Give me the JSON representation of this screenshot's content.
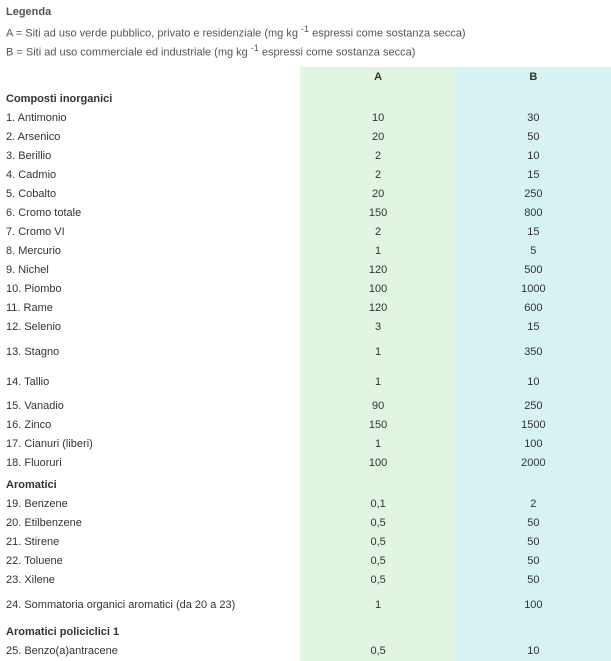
{
  "legend": {
    "title": "Legenda",
    "lineA_pre": "A = Siti ad uso verde pubblico, privato e residenziale (mg kg ",
    "lineA_sup": "-1",
    "lineA_post": " espressi come sostanza secca)",
    "lineB_pre": "B = Siti ad uso commerciale ed industriale (mg kg ",
    "lineB_sup": "-1",
    "lineB_post": " espressi come sostanza secca)"
  },
  "headers": {
    "colA": "A",
    "colB": "B"
  },
  "colors": {
    "colA_bg": "#e2f4e2",
    "colB_bg": "#d6f2f2",
    "text": "#333333"
  },
  "sections": [
    {
      "title": "Composti inorganici",
      "rows": [
        {
          "label": "1. Antimonio",
          "a": "10",
          "b": "30"
        },
        {
          "label": "2. Arsenico",
          "a": "20",
          "b": "50"
        },
        {
          "label": "3. Berillio",
          "a": "2",
          "b": "10"
        },
        {
          "label": "4. Cadmio",
          "a": "2",
          "b": "15"
        },
        {
          "label": "5. Cobalto",
          "a": "20",
          "b": "250"
        },
        {
          "label": "6. Cromo totale",
          "a": "150",
          "b": "800"
        },
        {
          "label": "7. Cromo VI",
          "a": "2",
          "b": "15"
        },
        {
          "label": "8. Mercurio",
          "a": "1",
          "b": "5"
        },
        {
          "label": "9. Nichel",
          "a": "120",
          "b": "500"
        },
        {
          "label": "10. Piombo",
          "a": "100",
          "b": "1000"
        },
        {
          "label": "11. Rame",
          "a": "120",
          "b": "600"
        },
        {
          "label": "12. Selenio",
          "a": "3",
          "b": "15"
        },
        {
          "label": "13. Stagno",
          "a": "1",
          "b": "350",
          "tall": true
        },
        {
          "label": "14. Tallio",
          "a": "1",
          "b": "10",
          "tall": true
        },
        {
          "label": "15. Vanadio",
          "a": "90",
          "b": "250"
        },
        {
          "label": "16. Zinco",
          "a": "150",
          "b": "1500"
        },
        {
          "label": "17. Cianuri (liberi)",
          "a": "1",
          "b": "100"
        },
        {
          "label": "18. Fluoruri",
          "a": "100",
          "b": "2000"
        }
      ]
    },
    {
      "title": "Aromatici",
      "rows": [
        {
          "label": "19. Benzene",
          "a": "0,1",
          "b": "2"
        },
        {
          "label": "20. Etilbenzene",
          "a": "0,5",
          "b": "50"
        },
        {
          "label": "21. Stirene",
          "a": "0,5",
          "b": "50"
        },
        {
          "label": "22. Toluene",
          "a": "0,5",
          "b": "50"
        },
        {
          "label": "23. Xilene",
          "a": "0,5",
          "b": "50"
        },
        {
          "label": "24. Sommatoria organici aromatici (da 20 a 23)",
          "a": "1",
          "b": "100",
          "tall": true
        }
      ]
    },
    {
      "title": "Aromatici policiclici 1",
      "rows": [
        {
          "label": "25. Benzo(a)antracene",
          "a": "0,5",
          "b": "10"
        }
      ]
    }
  ]
}
